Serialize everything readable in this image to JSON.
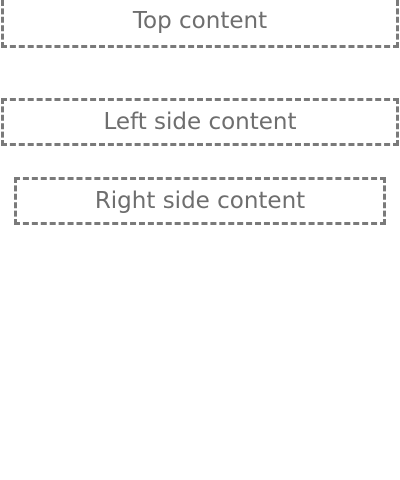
{
  "boxes": {
    "top": "Top content",
    "left": "Left side content",
    "right": "Right side content"
  }
}
